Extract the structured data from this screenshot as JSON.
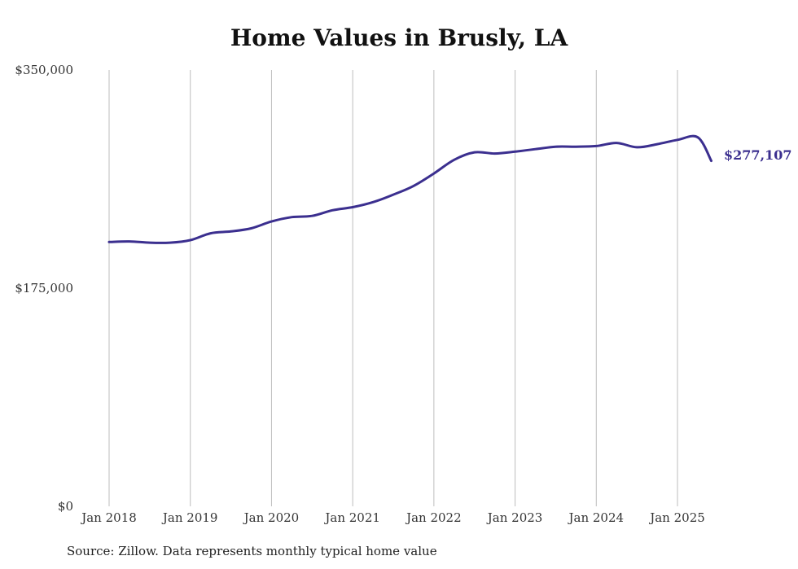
{
  "chart_data": {
    "type": "line",
    "title": "Home Values in Brusly, LA",
    "source": "Source: Zillow. Data represents monthly typical home value",
    "ylim": [
      0,
      350000
    ],
    "y_ticks": [
      {
        "value": 0,
        "label": "$0"
      },
      {
        "value": 175000,
        "label": "$175,000"
      },
      {
        "value": 350000,
        "label": "$350,000"
      }
    ],
    "x_ticks": [
      {
        "value": "2018-01",
        "label": "Jan 2018"
      },
      {
        "value": "2019-01",
        "label": "Jan 2019"
      },
      {
        "value": "2020-01",
        "label": "Jan 2020"
      },
      {
        "value": "2021-01",
        "label": "Jan 2021"
      },
      {
        "value": "2022-01",
        "label": "Jan 2022"
      },
      {
        "value": "2023-01",
        "label": "Jan 2023"
      },
      {
        "value": "2024-01",
        "label": "Jan 2024"
      },
      {
        "value": "2025-01",
        "label": "Jan 2025"
      }
    ],
    "grid": "vertical",
    "line_color": "#3b2f8f",
    "end_label": "$277,107",
    "series": [
      {
        "x": [
          "2018-01",
          "2018-04",
          "2018-07",
          "2018-10",
          "2019-01",
          "2019-04",
          "2019-07",
          "2019-10",
          "2020-01",
          "2020-04",
          "2020-07",
          "2020-10",
          "2021-01",
          "2021-04",
          "2021-07",
          "2021-10",
          "2022-01",
          "2022-04",
          "2022-07",
          "2022-10",
          "2023-01",
          "2023-04",
          "2023-07",
          "2023-10",
          "2024-01",
          "2024-04",
          "2024-07",
          "2024-10",
          "2025-01",
          "2025-04",
          "2025-06"
        ],
        "values": [
          212000,
          212500,
          211500,
          211500,
          213500,
          219000,
          220500,
          223000,
          228500,
          232000,
          233000,
          237500,
          240000,
          244000,
          250000,
          257000,
          267000,
          278000,
          284000,
          283000,
          284500,
          286500,
          288500,
          288500,
          289000,
          291500,
          288000,
          290500,
          294000,
          296000,
          277107
        ]
      }
    ]
  }
}
